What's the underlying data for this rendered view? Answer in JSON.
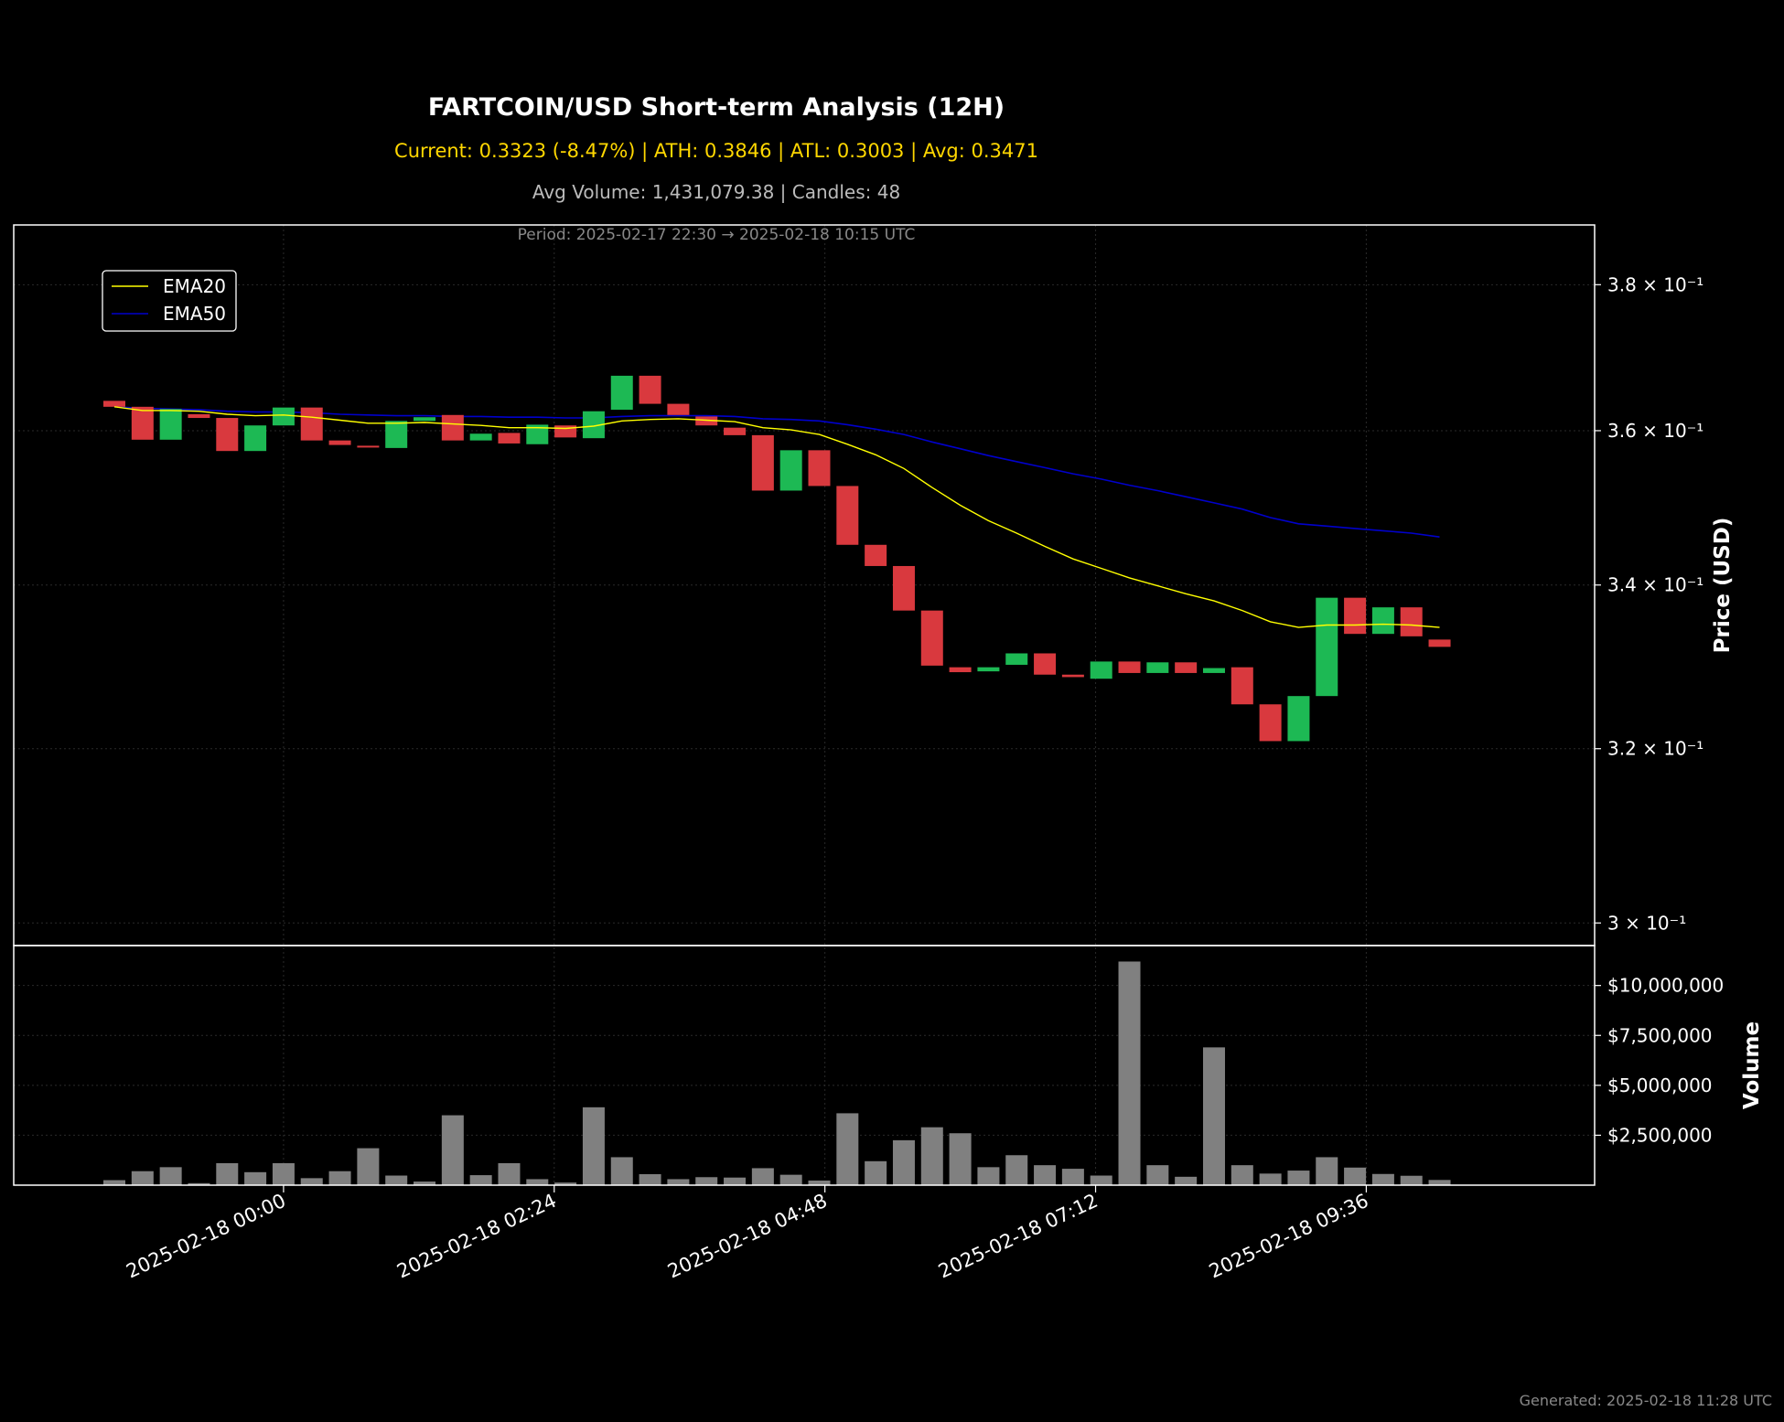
{
  "header": {
    "title": "FARTCOIN/USD Short-term Analysis (12H)",
    "stats": "Current: 0.3323 (-8.47%) | ATH: 0.3846 | ATL: 0.3003 | Avg: 0.3471",
    "volume_info": "Avg Volume: 1,431,079.38 | Candles: 48",
    "period": "Period: 2025-02-17 22:30 → 2025-02-18 10:15 UTC"
  },
  "footer": {
    "generated": "Generated: 2025-02-18 11:28 UTC"
  },
  "colors": {
    "background": "#000000",
    "up": "#1db954",
    "down": "#d9393e",
    "ema20": "#ffff00",
    "ema50": "#0000cc",
    "volume": "#808080",
    "stats_text": "#ffd700",
    "info_text": "#bbbbbb",
    "period_text": "#888888"
  },
  "chart_data": [
    {
      "type": "candlestick",
      "ylabel": "Price (USD)",
      "yscale": "log",
      "ylim": [
        0.2975,
        0.3885
      ],
      "y_ticks": [
        0.3,
        0.32,
        0.34,
        0.36,
        0.38
      ],
      "y_tick_labels": [
        "3 × 10⁻¹",
        "3.2 × 10⁻¹",
        "3.4 × 10⁻¹",
        "3.6 × 10⁻¹",
        "3.8 × 10⁻¹"
      ],
      "x_ticks": [
        "2025-02-18 00:00",
        "2025-02-18 02:24",
        "2025-02-18 04:48",
        "2025-02-18 07:12",
        "2025-02-18 09:36"
      ],
      "grid": true,
      "legend_position": "top-left",
      "legend": [
        "EMA20",
        "EMA50"
      ],
      "candles": [
        {
          "t": "2025-02-17 22:30",
          "o": 0.364,
          "c": 0.3632
        },
        {
          "t": "2025-02-17 22:45",
          "o": 0.3632,
          "c": 0.3588
        },
        {
          "t": "2025-02-17 23:00",
          "o": 0.3588,
          "c": 0.3629
        },
        {
          "t": "2025-02-17 23:15",
          "o": 0.3622,
          "c": 0.3617
        },
        {
          "t": "2025-02-17 23:30",
          "o": 0.3617,
          "c": 0.3573
        },
        {
          "t": "2025-02-17 23:45",
          "o": 0.3573,
          "c": 0.3607
        },
        {
          "t": "2025-02-18 00:00",
          "o": 0.3607,
          "c": 0.3631
        },
        {
          "t": "2025-02-18 00:15",
          "o": 0.3631,
          "c": 0.3587
        },
        {
          "t": "2025-02-18 00:30",
          "o": 0.3587,
          "c": 0.3581
        },
        {
          "t": "2025-02-18 00:45",
          "o": 0.358,
          "c": 0.3579
        },
        {
          "t": "2025-02-18 01:00",
          "o": 0.3577,
          "c": 0.3613
        },
        {
          "t": "2025-02-18 01:15",
          "o": 0.3613,
          "c": 0.3618
        },
        {
          "t": "2025-02-18 01:30",
          "o": 0.3621,
          "c": 0.3587
        },
        {
          "t": "2025-02-18 01:45",
          "o": 0.3587,
          "c": 0.3596
        },
        {
          "t": "2025-02-18 02:00",
          "o": 0.3597,
          "c": 0.3583
        },
        {
          "t": "2025-02-18 02:15",
          "o": 0.3582,
          "c": 0.3608
        },
        {
          "t": "2025-02-18 02:30",
          "o": 0.3607,
          "c": 0.3591
        },
        {
          "t": "2025-02-18 02:45",
          "o": 0.359,
          "c": 0.3626
        },
        {
          "t": "2025-02-18 03:00",
          "o": 0.3628,
          "c": 0.3674
        },
        {
          "t": "2025-02-18 03:15",
          "o": 0.3674,
          "c": 0.3636
        },
        {
          "t": "2025-02-18 03:30",
          "o": 0.3636,
          "c": 0.3621
        },
        {
          "t": "2025-02-18 03:45",
          "o": 0.3619,
          "c": 0.3607
        },
        {
          "t": "2025-02-18 04:00",
          "o": 0.3604,
          "c": 0.3594
        },
        {
          "t": "2025-02-18 04:15",
          "o": 0.3594,
          "c": 0.3521
        },
        {
          "t": "2025-02-18 04:30",
          "o": 0.3521,
          "c": 0.3574
        },
        {
          "t": "2025-02-18 04:45",
          "o": 0.3574,
          "c": 0.3527
        },
        {
          "t": "2025-02-18 05:00",
          "o": 0.3527,
          "c": 0.3451
        },
        {
          "t": "2025-02-18 05:15",
          "o": 0.3451,
          "c": 0.3424
        },
        {
          "t": "2025-02-18 05:30",
          "o": 0.3424,
          "c": 0.3368
        },
        {
          "t": "2025-02-18 05:45",
          "o": 0.3368,
          "c": 0.33
        },
        {
          "t": "2025-02-18 06:00",
          "o": 0.3298,
          "c": 0.3292
        },
        {
          "t": "2025-02-18 06:15",
          "o": 0.3293,
          "c": 0.3298
        },
        {
          "t": "2025-02-18 06:30",
          "o": 0.3301,
          "c": 0.3315
        },
        {
          "t": "2025-02-18 06:45",
          "o": 0.3315,
          "c": 0.3289
        },
        {
          "t": "2025-02-18 07:00",
          "o": 0.3289,
          "c": 0.3286
        },
        {
          "t": "2025-02-18 07:15",
          "o": 0.3284,
          "c": 0.3305
        },
        {
          "t": "2025-02-18 07:30",
          "o": 0.3305,
          "c": 0.3291
        },
        {
          "t": "2025-02-18 07:45",
          "o": 0.3291,
          "c": 0.3304
        },
        {
          "t": "2025-02-18 08:00",
          "o": 0.3304,
          "c": 0.3291
        },
        {
          "t": "2025-02-18 08:15",
          "o": 0.3291,
          "c": 0.3297
        },
        {
          "t": "2025-02-18 08:30",
          "o": 0.3298,
          "c": 0.3253
        },
        {
          "t": "2025-02-18 08:45",
          "o": 0.3253,
          "c": 0.3209
        },
        {
          "t": "2025-02-18 09:00",
          "o": 0.3209,
          "c": 0.3263
        },
        {
          "t": "2025-02-18 09:15",
          "o": 0.3263,
          "c": 0.3384
        },
        {
          "t": "2025-02-18 09:30",
          "o": 0.3384,
          "c": 0.3339
        },
        {
          "t": "2025-02-18 09:45",
          "o": 0.3339,
          "c": 0.3372
        },
        {
          "t": "2025-02-18 10:00",
          "o": 0.3372,
          "c": 0.3336
        },
        {
          "t": "2025-02-18 10:15",
          "o": 0.3332,
          "c": 0.3323
        }
      ],
      "ema20": [
        0.3632,
        0.3627,
        0.3627,
        0.3626,
        0.3622,
        0.362,
        0.3621,
        0.3618,
        0.3614,
        0.361,
        0.361,
        0.3611,
        0.3609,
        0.3607,
        0.3604,
        0.3604,
        0.3603,
        0.3606,
        0.3613,
        0.3615,
        0.3616,
        0.3614,
        0.3612,
        0.3604,
        0.3601,
        0.3595,
        0.3582,
        0.3568,
        0.355,
        0.3525,
        0.3502,
        0.3482,
        0.3466,
        0.3449,
        0.3433,
        0.3421,
        0.3409,
        0.3399,
        0.3389,
        0.338,
        0.3368,
        0.3354,
        0.3347,
        0.335,
        0.335,
        0.3351,
        0.335,
        0.3347
      ],
      "ema50": [
        0.3632,
        0.363,
        0.3629,
        0.3628,
        0.3626,
        0.3625,
        0.3625,
        0.3624,
        0.3622,
        0.3621,
        0.362,
        0.362,
        0.3619,
        0.3619,
        0.3618,
        0.3618,
        0.3617,
        0.3617,
        0.3619,
        0.362,
        0.362,
        0.362,
        0.3619,
        0.3616,
        0.3615,
        0.3613,
        0.3608,
        0.3602,
        0.3595,
        0.3585,
        0.3576,
        0.3567,
        0.3559,
        0.3551,
        0.3543,
        0.3536,
        0.3528,
        0.3521,
        0.3513,
        0.3505,
        0.3497,
        0.3486,
        0.3478,
        0.3475,
        0.3472,
        0.3469,
        0.3466,
        0.3461
      ]
    },
    {
      "type": "bar",
      "ylabel": "Volume",
      "ylim": [
        0,
        12000000
      ],
      "y_ticks": [
        2500000,
        5000000,
        7500000,
        10000000
      ],
      "y_tick_labels": [
        "$2,500,000",
        "$5,000,000",
        "$7,500,000",
        "$10,000,000"
      ],
      "grid": true,
      "values": [
        250000,
        700000,
        900000,
        100000,
        1100000,
        650000,
        1100000,
        350000,
        700000,
        1850000,
        480000,
        180000,
        3500000,
        500000,
        1100000,
        300000,
        130000,
        3900000,
        1400000,
        550000,
        300000,
        400000,
        380000,
        850000,
        520000,
        230000,
        3600000,
        1200000,
        2250000,
        2900000,
        2600000,
        900000,
        1500000,
        1000000,
        820000,
        480000,
        11200000,
        1000000,
        420000,
        6900000,
        1000000,
        580000,
        730000,
        1400000,
        880000,
        560000,
        470000,
        260000
      ]
    }
  ]
}
